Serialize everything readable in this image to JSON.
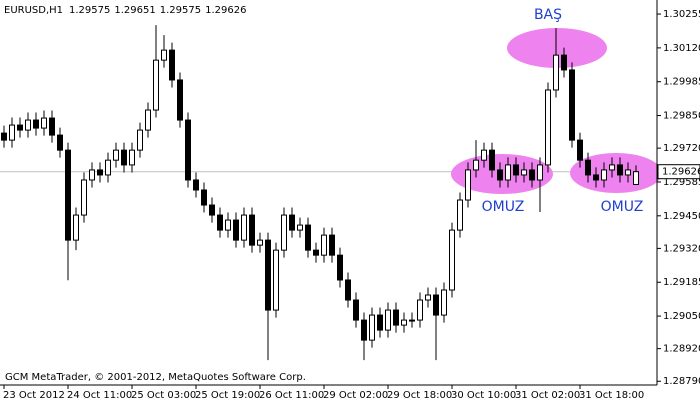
{
  "chart_data": {
    "type": "candlestick",
    "symbol": "EURUSD,H1",
    "copyright": "GCM MetaTrader, © 2001-2012, MetaQuotes Software Corp.",
    "annotations": [
      "BAŞ",
      "OMUZ",
      "OMUZ"
    ],
    "up_color": "#ffffff",
    "down_color": "#000000",
    "line_color": "#000000",
    "price_line_color": "#c0c0c0",
    "ylim": [
      1.28775,
      1.30311
    ],
    "yticks": [
      1.30255,
      {
        "value": 1.3012,
        "label": "1.30120"
      },
      1.29985,
      {
        "value": 1.2985,
        "label": "1.29850"
      },
      {
        "value": 1.2972,
        "label": "1.29720"
      },
      1.29585,
      {
        "value": 1.2945,
        "label": "1.29450"
      },
      {
        "value": 1.2932,
        "label": "1.29320"
      },
      1.29185,
      {
        "value": 1.2905,
        "label": "1.29050"
      },
      {
        "value": 1.2892,
        "label": "1.28920"
      },
      {
        "value": 1.2879,
        "label": "1.28790"
      }
    ],
    "categories": [
      "23 Oct 2012",
      null,
      null,
      null,
      null,
      null,
      null,
      null,
      "24 Oct 11:00",
      null,
      null,
      null,
      null,
      null,
      null,
      null,
      "25 Oct 03:00",
      null,
      null,
      null,
      null,
      null,
      null,
      null,
      "25 Oct 19:00",
      null,
      null,
      null,
      null,
      null,
      null,
      null,
      "26 Oct 11:00",
      null,
      null,
      null,
      null,
      null,
      null,
      null,
      "29 Oct 02:00",
      null,
      null,
      null,
      null,
      null,
      null,
      null,
      "29 Oct 18:00",
      null,
      null,
      null,
      null,
      null,
      null,
      null,
      "30 Oct 10:00",
      null,
      null,
      null,
      null,
      null,
      null,
      null,
      "31 Oct 02:00",
      null,
      null,
      null,
      null,
      null,
      null,
      null,
      "31 Oct 18:00",
      null,
      null,
      null,
      null,
      null,
      null,
      null
    ],
    "open": [
      1.2978,
      1.29752,
      1.29812,
      1.29792,
      1.29832,
      1.298,
      1.2984,
      1.29772,
      1.29712,
      1.29353,
      1.29453,
      1.29593,
      1.29633,
      1.29613,
      1.29672,
      1.29712,
      1.29653,
      1.29712,
      1.29792,
      1.29872,
      1.30071,
      1.30111,
      1.29992,
      1.29832,
      1.29593,
      1.29553,
      1.29493,
      1.29453,
      1.29393,
      1.29433,
      1.29353,
      1.29453,
      1.29333,
      1.29353,
      1.29074,
      1.29313,
      1.29453,
      1.29393,
      1.29413,
      1.29313,
      1.29293,
      1.29373,
      1.29293,
      1.29194,
      1.29114,
      1.29034,
      1.28954,
      1.29054,
      1.28994,
      1.29074,
      1.29014,
      1.29034,
      1.29034,
      1.29114,
      1.29134,
      1.29054,
      1.29154,
      1.29393,
      1.29513,
      1.29633,
      1.29672,
      1.29712,
      1.29633,
      1.29593,
      1.29653,
      1.29613,
      1.29633,
      1.29593,
      1.29653,
      1.29952,
      1.30091,
      1.30032,
      1.29752,
      1.29672,
      1.29613,
      1.29593,
      1.29633,
      1.29653,
      1.29613,
      1.29575
    ],
    "high": [
      1.2981,
      1.29842,
      1.29842,
      1.29862,
      1.29862,
      1.2987,
      1.2987,
      1.29802,
      1.29742,
      1.29483,
      1.29623,
      1.29663,
      1.29663,
      1.29702,
      1.29742,
      1.29742,
      1.29742,
      1.29822,
      1.29902,
      1.30211,
      1.30171,
      1.30141,
      1.30022,
      1.29862,
      1.29623,
      1.29583,
      1.29523,
      1.29483,
      1.29463,
      1.29463,
      1.29483,
      1.29483,
      1.29383,
      1.29383,
      1.29343,
      1.29483,
      1.29483,
      1.29443,
      1.29443,
      1.29343,
      1.29403,
      1.29403,
      1.29323,
      1.29224,
      1.29144,
      1.29064,
      1.29084,
      1.29084,
      1.29104,
      1.29104,
      1.29064,
      1.29064,
      1.29144,
      1.29164,
      1.29164,
      1.29184,
      1.29423,
      1.29543,
      1.29663,
      1.29752,
      1.29742,
      1.29742,
      1.29663,
      1.29683,
      1.29683,
      1.29663,
      1.29663,
      1.29683,
      1.29982,
      1.30199,
      1.30121,
      1.30062,
      1.29782,
      1.29702,
      1.29643,
      1.29663,
      1.29683,
      1.29683,
      1.29663,
      1.29651
    ],
    "low": [
      1.29722,
      1.29722,
      1.29762,
      1.29762,
      1.2977,
      1.2977,
      1.29742,
      1.29682,
      1.29193,
      1.29313,
      1.29423,
      1.29563,
      1.29583,
      1.29583,
      1.29642,
      1.29623,
      1.29623,
      1.29682,
      1.29762,
      1.29842,
      1.30041,
      1.29962,
      1.29802,
      1.29563,
      1.29523,
      1.29463,
      1.29423,
      1.29363,
      1.29363,
      1.29323,
      1.29323,
      1.29303,
      1.29303,
      1.28874,
      1.29044,
      1.29283,
      1.29363,
      1.29363,
      1.29283,
      1.29263,
      1.29263,
      1.29263,
      1.29164,
      1.29084,
      1.29004,
      1.28874,
      1.28924,
      1.28964,
      1.28964,
      1.28984,
      1.28984,
      1.29004,
      1.29004,
      1.29084,
      1.28874,
      1.29024,
      1.29124,
      1.29363,
      1.29483,
      1.29603,
      1.29642,
      1.29603,
      1.29563,
      1.29563,
      1.29583,
      1.29583,
      1.29563,
      1.29465,
      1.29623,
      1.29922,
      1.30002,
      1.29722,
      1.29642,
      1.29583,
      1.29563,
      1.29563,
      1.29603,
      1.29583,
      1.29583,
      1.29575
    ],
    "close": [
      1.29752,
      1.29812,
      1.29792,
      1.29832,
      1.298,
      1.2984,
      1.29772,
      1.29712,
      1.29353,
      1.29453,
      1.29593,
      1.29633,
      1.29613,
      1.29672,
      1.29712,
      1.29653,
      1.29712,
      1.29792,
      1.29872,
      1.30071,
      1.30111,
      1.29992,
      1.29832,
      1.29593,
      1.29553,
      1.29493,
      1.29453,
      1.29393,
      1.29433,
      1.29353,
      1.29453,
      1.29333,
      1.29353,
      1.29074,
      1.29313,
      1.29453,
      1.29393,
      1.29413,
      1.29313,
      1.29293,
      1.29373,
      1.29293,
      1.29194,
      1.29114,
      1.29034,
      1.28954,
      1.29054,
      1.28994,
      1.29074,
      1.29014,
      1.29034,
      1.29034,
      1.29114,
      1.29134,
      1.29054,
      1.29154,
      1.29393,
      1.29513,
      1.29633,
      1.29672,
      1.29712,
      1.29633,
      1.29593,
      1.29653,
      1.29613,
      1.29633,
      1.29593,
      1.29653,
      1.29952,
      1.30091,
      1.30032,
      1.29752,
      1.29672,
      1.29613,
      1.29593,
      1.29633,
      1.29653,
      1.29613,
      1.29633,
      1.29626
    ]
  }
}
